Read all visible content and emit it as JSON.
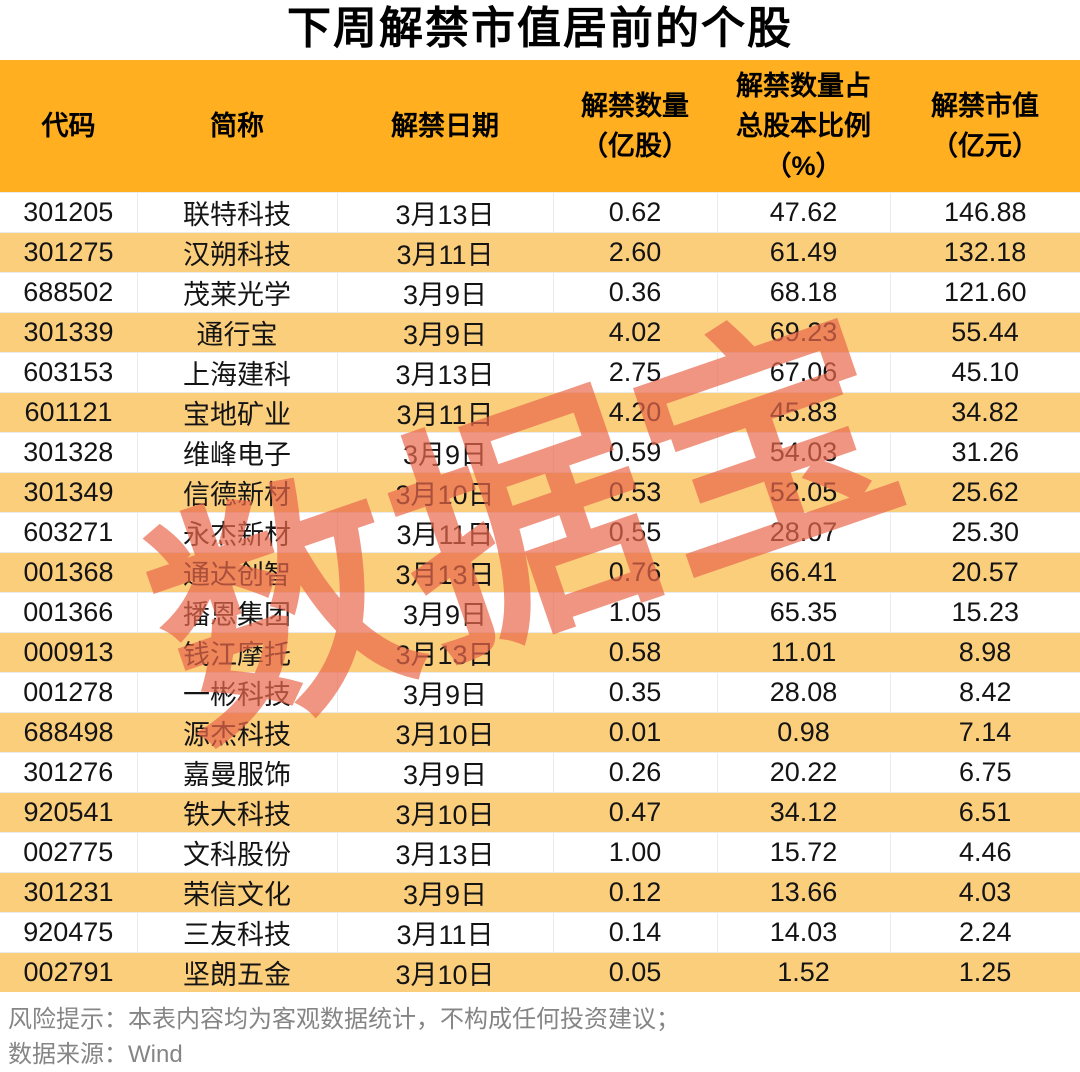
{
  "title": "下周解禁市值居前的个股",
  "watermark": "数据宝",
  "colors": {
    "header_bg": "#FFAF1F",
    "stripe_bg": "#FBCE7C",
    "grid_line": "#EBEBEB",
    "footer_text": "#858585",
    "watermark_color": "rgba(234,104,75,0.70)"
  },
  "chart_data": {
    "type": "table",
    "title": "下周解禁市值居前的个股",
    "columns": [
      "代码",
      "简称",
      "解禁日期",
      "解禁数量\n（亿股）",
      "解禁数量占\n总股本比例\n（%）",
      "解禁市值\n（亿元）"
    ],
    "rows": [
      [
        "301205",
        "联特科技",
        "3月13日",
        "0.62",
        "47.62",
        "146.88"
      ],
      [
        "301275",
        "汉朔科技",
        "3月11日",
        "2.60",
        "61.49",
        "132.18"
      ],
      [
        "688502",
        "茂莱光学",
        "3月9日",
        "0.36",
        "68.18",
        "121.60"
      ],
      [
        "301339",
        "通行宝",
        "3月9日",
        "4.02",
        "69.23",
        "55.44"
      ],
      [
        "603153",
        "上海建科",
        "3月13日",
        "2.75",
        "67.06",
        "45.10"
      ],
      [
        "601121",
        "宝地矿业",
        "3月11日",
        "4.20",
        "45.83",
        "34.82"
      ],
      [
        "301328",
        "维峰电子",
        "3月9日",
        "0.59",
        "54.03",
        "31.26"
      ],
      [
        "301349",
        "信德新材",
        "3月10日",
        "0.53",
        "52.05",
        "25.62"
      ],
      [
        "603271",
        "永杰新材",
        "3月11日",
        "0.55",
        "28.07",
        "25.30"
      ],
      [
        "001368",
        "通达创智",
        "3月13日",
        "0.76",
        "66.41",
        "20.57"
      ],
      [
        "001366",
        "播恩集团",
        "3月9日",
        "1.05",
        "65.35",
        "15.23"
      ],
      [
        "000913",
        "钱江摩托",
        "3月13日",
        "0.58",
        "11.01",
        "8.98"
      ],
      [
        "001278",
        "一彬科技",
        "3月9日",
        "0.35",
        "28.08",
        "8.42"
      ],
      [
        "688498",
        "源杰科技",
        "3月10日",
        "0.01",
        "0.98",
        "7.14"
      ],
      [
        "301276",
        "嘉曼服饰",
        "3月9日",
        "0.26",
        "20.22",
        "6.75"
      ],
      [
        "920541",
        "铁大科技",
        "3月10日",
        "0.47",
        "34.12",
        "6.51"
      ],
      [
        "002775",
        "文科股份",
        "3月13日",
        "1.00",
        "15.72",
        "4.46"
      ],
      [
        "301231",
        "荣信文化",
        "3月9日",
        "0.12",
        "13.66",
        "4.03"
      ],
      [
        "920475",
        "三友科技",
        "3月11日",
        "0.14",
        "14.03",
        "2.24"
      ],
      [
        "002791",
        "坚朗五金",
        "3月10日",
        "0.05",
        "1.52",
        "1.25"
      ]
    ]
  },
  "footer": {
    "risk_note": "风险提示：本表内容均为客观数据统计，不构成任何投资建议；",
    "data_source": "数据来源：Wind"
  }
}
